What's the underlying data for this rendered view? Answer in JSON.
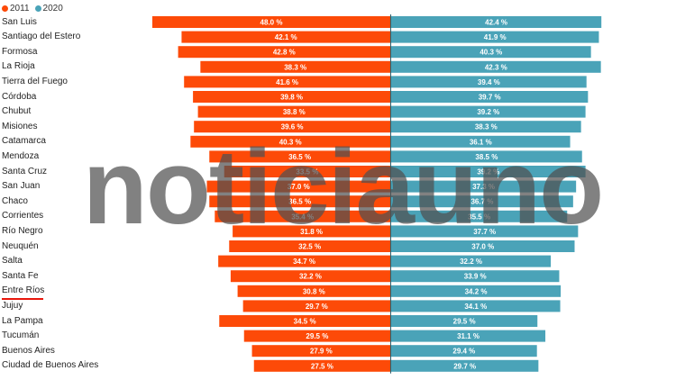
{
  "chart_data": {
    "type": "bar",
    "orientation": "horizontal-diverging",
    "categories": [
      "San Luis",
      "Santiago del Estero",
      "Formosa",
      "La Rioja",
      "Tierra del Fuego",
      "Córdoba",
      "Chubut",
      "Misiones",
      "Catamarca",
      "Mendoza",
      "Santa Cruz",
      "San Juan",
      "Chaco",
      "Corrientes",
      "Río Negro",
      "Neuquén",
      "Salta",
      "Santa Fe",
      "Entre Ríos",
      "Jujuy",
      "La Pampa",
      "Tucumán",
      "Buenos Aires",
      "Ciudad de Buenos Aires"
    ],
    "series": [
      {
        "name": "2011",
        "color": "#fd4a08",
        "values": [
          48.0,
          42.1,
          42.8,
          38.3,
          41.6,
          39.8,
          38.8,
          39.6,
          40.3,
          36.5,
          33.5,
          37.0,
          36.5,
          35.4,
          31.8,
          32.5,
          34.7,
          32.2,
          30.8,
          29.7,
          34.5,
          29.5,
          27.9,
          27.5
        ]
      },
      {
        "name": "2020",
        "color": "#4aa3b8",
        "values": [
          42.4,
          41.9,
          40.3,
          42.3,
          39.4,
          39.7,
          39.2,
          38.3,
          36.1,
          38.5,
          39.2,
          37.3,
          36.7,
          35.5,
          37.7,
          37.0,
          32.2,
          33.9,
          34.2,
          34.1,
          29.5,
          31.1,
          29.4,
          29.7
        ]
      }
    ],
    "value_labels": {
      "2011": [
        "48.0 %",
        "42.1 %",
        "42.8 %",
        "38.3 %",
        "41.6 %",
        "39.8 %",
        "38.8 %",
        "39.6 %",
        "40.3 %",
        "36.5 %",
        "33.5 %",
        "37.0 %",
        "36.5 %",
        "35.4 %",
        "31.8 %",
        "32.5 %",
        "34.7 %",
        "32.2 %",
        "30.8 %",
        "29.7 %",
        "34.5 %",
        "29.5 %",
        "27.9 %",
        "27.5 %"
      ],
      "2020": [
        "42.4 %",
        "41.9 %",
        "40.3 %",
        "42.3 %",
        "39.4 %",
        "39.7 %",
        "39.2 %",
        "38.3 %",
        "36.1 %",
        "38.5 %",
        "39.2 %",
        "37.3 %",
        "36.7 %",
        "35.5 %",
        "37.7 %",
        "37.0 %",
        "32.2 %",
        "33.9 %",
        "34.2 %",
        "34.1 %",
        "29.5 %",
        "31.1 %",
        "29.4 %",
        "29.7 %"
      ]
    },
    "highlighted_category": "Entre Ríos",
    "legend_position": "top-left",
    "grid": false
  },
  "watermark": "noticiauno"
}
